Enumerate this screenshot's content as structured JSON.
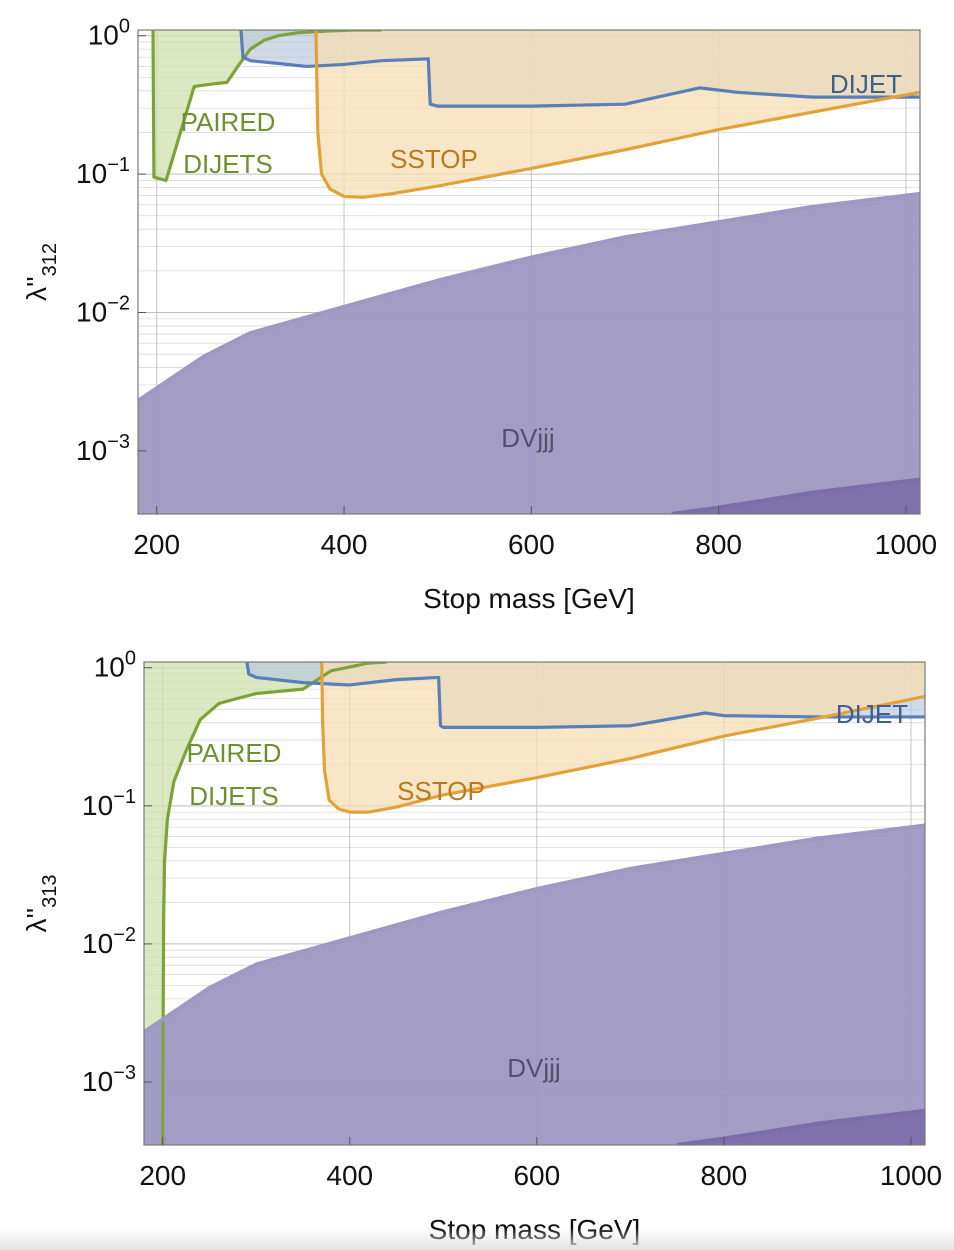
{
  "chart_data": [
    {
      "type": "area",
      "xlabel": "Stop mass [GeV]",
      "ylabel": "λ''",
      "ylabel_sub": "312",
      "xlim": [
        180,
        1015
      ],
      "ylim": [
        0.00035,
        1.1
      ],
      "yscale": "log",
      "grid": true,
      "x_ticks": [
        "200",
        "400",
        "600",
        "800",
        "1000"
      ],
      "y_ticks": [
        {
          "base": "10",
          "exp": "0"
        },
        {
          "base": "10",
          "exp": "−1"
        },
        {
          "base": "10",
          "exp": "−2"
        },
        {
          "base": "10",
          "exp": "−3"
        }
      ],
      "series": [
        {
          "name": "PAIRED DIJETS",
          "color": "#7da338",
          "fill": "#cfe0ad",
          "x": [
            196,
            197,
            210,
            240,
            262,
            275,
            288,
            300,
            315,
            330,
            350,
            380,
            410,
            440
          ],
          "y": [
            1.1,
            0.095,
            0.09,
            0.43,
            0.45,
            0.46,
            0.62,
            0.8,
            0.93,
            1.0,
            1.05,
            1.08,
            1.1,
            1.1
          ]
        },
        {
          "name": "DIJET",
          "color": "#5a7fb8",
          "fill": "#b7c8de",
          "x": [
            290,
            292,
            300,
            330,
            360,
            400,
            440,
            490,
            492,
            500,
            600,
            700,
            780,
            820,
            900,
            1015
          ],
          "y": [
            1.1,
            0.7,
            0.66,
            0.63,
            0.6,
            0.62,
            0.66,
            0.68,
            0.32,
            0.31,
            0.31,
            0.32,
            0.42,
            0.39,
            0.36,
            0.36
          ]
        },
        {
          "name": "SSTOP",
          "color": "#e2a23a",
          "fill": "#f5ddb3",
          "x": [
            370,
            372,
            376,
            385,
            400,
            420,
            450,
            500,
            600,
            700,
            800,
            900,
            1015
          ],
          "y": [
            1.1,
            0.2,
            0.1,
            0.078,
            0.069,
            0.068,
            0.072,
            0.082,
            0.11,
            0.15,
            0.21,
            0.28,
            0.39
          ]
        },
        {
          "name": "DVjjj",
          "color": "#9e98c3",
          "fill": "#9e98c3",
          "x": [
            180,
            250,
            300,
            400,
            500,
            600,
            700,
            800,
            900,
            1015
          ],
          "y": [
            0.0023,
            0.0048,
            0.0071,
            0.011,
            0.017,
            0.025,
            0.035,
            0.045,
            0.058,
            0.072
          ]
        },
        {
          "name": "",
          "color": "#7b6ea8",
          "fill": "#7b6ea8",
          "x": [
            750,
            800,
            850,
            900,
            950,
            1015
          ],
          "y": [
            0.00035,
            0.00039,
            0.00044,
            0.0005,
            0.00055,
            0.00062
          ]
        }
      ]
    },
    {
      "type": "area",
      "xlabel": "Stop mass [GeV]",
      "ylabel": "λ''",
      "ylabel_sub": "313",
      "xlim": [
        180,
        1015
      ],
      "ylim": [
        0.00035,
        1.1
      ],
      "yscale": "log",
      "grid": true,
      "x_ticks": [
        "200",
        "400",
        "600",
        "800",
        "1000"
      ],
      "y_ticks": [
        {
          "base": "10",
          "exp": "0"
        },
        {
          "base": "10",
          "exp": "−1"
        },
        {
          "base": "10",
          "exp": "−2"
        },
        {
          "base": "10",
          "exp": "−3"
        }
      ],
      "series": [
        {
          "name": "PAIRED DIJETS",
          "color": "#7da338",
          "fill": "#cfe0ad",
          "x": [
            200,
            200.5,
            201,
            202,
            205,
            212,
            225,
            240,
            260,
            280,
            300,
            330,
            350,
            380,
            420,
            440
          ],
          "y": [
            0.00035,
            0.003,
            0.015,
            0.04,
            0.08,
            0.15,
            0.25,
            0.42,
            0.55,
            0.6,
            0.65,
            0.68,
            0.7,
            0.95,
            1.08,
            1.1
          ]
        },
        {
          "name": "DIJET",
          "color": "#5a7fb8",
          "fill": "#b7c8de",
          "x": [
            290,
            292,
            300,
            350,
            400,
            450,
            495,
            497,
            500,
            600,
            700,
            780,
            800,
            900,
            1015
          ],
          "y": [
            1.1,
            0.9,
            0.85,
            0.78,
            0.75,
            0.82,
            0.85,
            0.38,
            0.37,
            0.37,
            0.38,
            0.47,
            0.45,
            0.44,
            0.44
          ]
        },
        {
          "name": "SSTOP",
          "color": "#e2a23a",
          "fill": "#f5ddb3",
          "x": [
            370,
            371,
            373,
            378,
            388,
            400,
            420,
            450,
            500,
            600,
            700,
            800,
            900,
            1015
          ],
          "y": [
            1.1,
            0.4,
            0.18,
            0.11,
            0.095,
            0.09,
            0.09,
            0.098,
            0.12,
            0.16,
            0.22,
            0.32,
            0.43,
            0.62
          ]
        },
        {
          "name": "DVjjj",
          "color": "#9e98c3",
          "fill": "#9e98c3",
          "x": [
            180,
            250,
            300,
            400,
            500,
            600,
            700,
            800,
            900,
            1015
          ],
          "y": [
            0.0023,
            0.0048,
            0.0071,
            0.011,
            0.017,
            0.025,
            0.035,
            0.045,
            0.058,
            0.072
          ]
        },
        {
          "name": "",
          "color": "#7b6ea8",
          "fill": "#7b6ea8",
          "x": [
            750,
            800,
            850,
            900,
            950,
            1015
          ],
          "y": [
            0.00035,
            0.00039,
            0.00044,
            0.0005,
            0.00055,
            0.00062
          ]
        }
      ]
    }
  ]
}
